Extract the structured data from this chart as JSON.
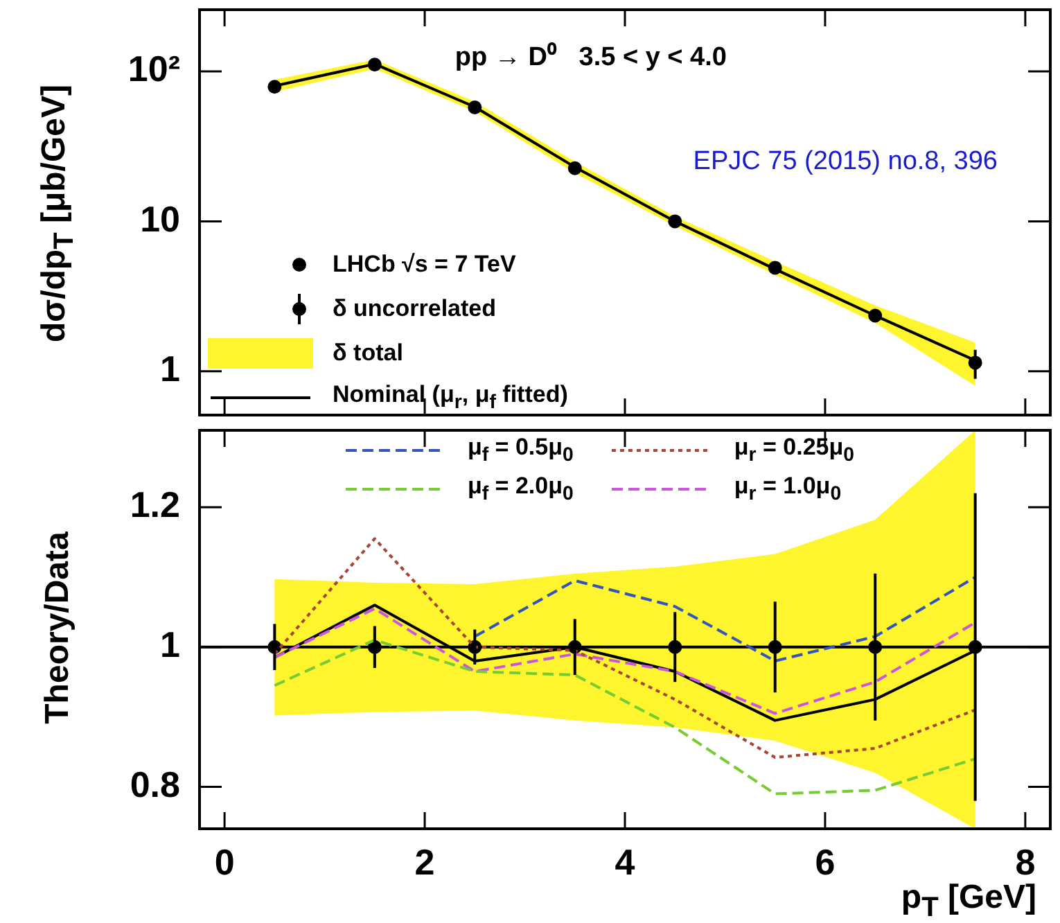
{
  "chart_data": [
    {
      "type": "line",
      "ylabel": "dσ/dp$_{T}$ [μb/GeV]",
      "log": "y",
      "grid": false,
      "legend": "bottom left",
      "tick_labels": "y",
      "x": [
        0.5,
        1.5,
        2.5,
        3.5,
        4.5,
        5.5,
        6.5,
        7.5
      ],
      "xlim": [
        -0.25,
        8.25
      ],
      "xticks": [
        0,
        2,
        4,
        6,
        8
      ],
      "ylim": [
        0.51,
        258
      ],
      "yticks": [
        {
          "value": 100,
          "label": "10²"
        },
        10,
        1
      ],
      "annotations": [
        "pp → D⁰   3.5 < y < 4.0",
        "EPJC 75 (2015) no.8, 396",
        "δ uncorrelated",
        "δ total"
      ],
      "series": [
        {
          "name": "LHCb √s = 7 TeV",
          "type": "scatter",
          "marker": "circle",
          "color": "#000000",
          "values": [
            79,
            111,
            57.5,
            22.6,
            10,
            4.9,
            2.35,
            1.14
          ],
          "errors": [
            null,
            null,
            null,
            null,
            null,
            null,
            null,
            0.25
          ]
        },
        {
          "name": "Nominal (μ$_{r}$, μ$_{f}$ fitted)",
          "line_style": "solid",
          "color": "#000000",
          "values": [
            80,
            112,
            58,
            23,
            10,
            4.8,
            2.35,
            1.18
          ],
          "lower": [
            73,
            104,
            54,
            21,
            9.3,
            4.4,
            2.1,
            0.8
          ],
          "upper": [
            88,
            120,
            63,
            25,
            10.8,
            5.4,
            2.75,
            1.55
          ]
        }
      ]
    },
    {
      "type": "line",
      "xlabel": "p$_{T}$ [GeV]",
      "ylabel": "Theory/Data",
      "grid": false,
      "legend": "top",
      "x": [
        0.5,
        1.5,
        2.5,
        3.5,
        4.5,
        5.5,
        6.5,
        7.5
      ],
      "xlim": [
        -0.25,
        8.25
      ],
      "xticks": [
        0,
        2,
        4,
        6,
        8
      ],
      "ylim": [
        0.74,
        1.31
      ],
      "yticks": [
        0.8,
        1,
        1.2
      ],
      "ref_lines": [
        {
          "axis": "y",
          "value": 1,
          "color": "#000000"
        }
      ],
      "series": [
        {
          "name": "μ$_{f}$ = 0.5μ$_{0}$",
          "line_style": "dashed",
          "color": "#3355bb",
          "values": [
            null,
            null,
            1.015,
            1.095,
            1.058,
            0.98,
            1.015,
            1.1
          ]
        },
        {
          "name": "μ$_{r}$ = 0.25μ$_{0}$",
          "line_style": "dotted",
          "color": "#aa4433",
          "values": [
            0.99,
            1.155,
            1.0,
            0.995,
            0.925,
            0.842,
            0.855,
            0.91
          ]
        },
        {
          "name": "μ$_{f}$ = 2.0μ$_{0}$",
          "line_style": "dashed",
          "color": "#77cc33",
          "values": [
            0.945,
            1.01,
            0.965,
            0.96,
            0.885,
            0.79,
            0.795,
            0.84
          ]
        },
        {
          "name": "μ$_{r}$ = 1.0μ$_{0}$",
          "line_style": "dashed",
          "color": "#cc55dd",
          "values": [
            0.985,
            1.055,
            0.965,
            0.99,
            0.965,
            0.905,
            0.95,
            1.035
          ]
        },
        {
          "line_style": "solid",
          "color": "#000000",
          "values": [
            0.985,
            1.06,
            0.98,
            1.0,
            0.965,
            0.895,
            0.925,
            0.995
          ],
          "lower": [
            0.902,
            0.907,
            0.909,
            0.895,
            0.885,
            0.866,
            0.82,
            0.74
          ],
          "upper": [
            1.097,
            1.092,
            1.09,
            1.105,
            1.115,
            1.133,
            1.182,
            1.31
          ]
        },
        {
          "type": "scatter",
          "marker": "circle",
          "color": "#000000",
          "values": [
            1,
            1,
            1,
            1,
            1,
            1,
            1,
            1
          ],
          "errors": [
            0.033,
            0.03,
            0.025,
            0.04,
            0.05,
            0.065,
            0.105,
            0.22
          ]
        }
      ]
    }
  ]
}
